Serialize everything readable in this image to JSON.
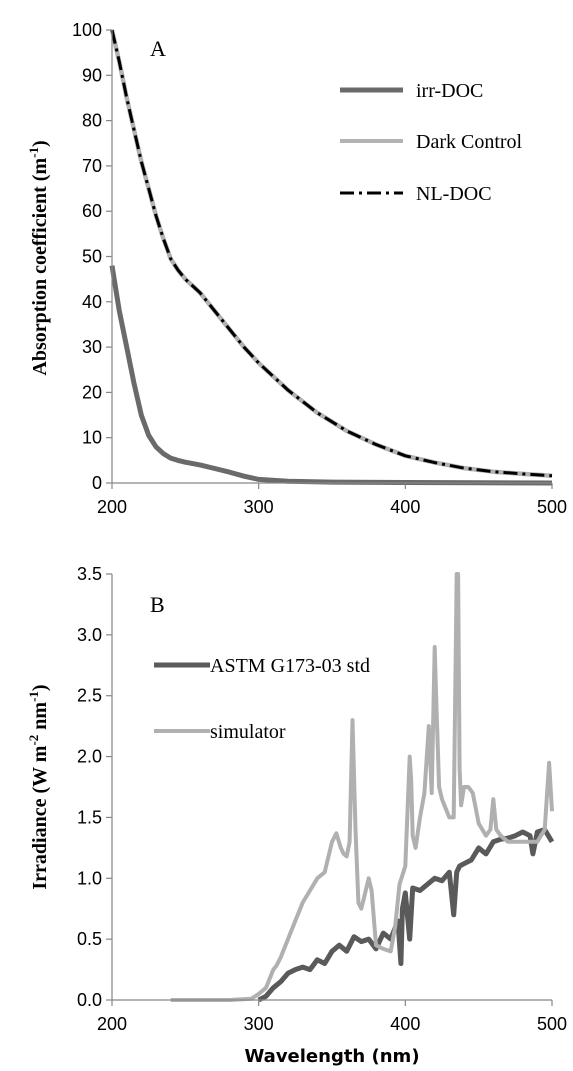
{
  "chart_data": [
    {
      "type": "line",
      "panel_label": "A",
      "ylabel": "Absorption coefficient (m",
      "ylabel_sup": "-1",
      "ylabel_end": ")",
      "xlabel": "",
      "xlim": [
        200,
        500
      ],
      "ylim": [
        0,
        100
      ],
      "x_ticks": [
        "200",
        "300",
        "400",
        "500"
      ],
      "y_ticks": [
        "0",
        "10",
        "20",
        "30",
        "40",
        "50",
        "60",
        "70",
        "80",
        "90",
        "100"
      ],
      "grid": false,
      "legend_position": "top-right",
      "series": [
        {
          "name": "irr-DOC",
          "color": "#6a6a6a",
          "style": "solid",
          "x": [
            200,
            205,
            210,
            215,
            220,
            225,
            230,
            235,
            240,
            245,
            250,
            260,
            270,
            280,
            290,
            300,
            320,
            350,
            400,
            450,
            500
          ],
          "y": [
            48,
            38,
            30,
            22,
            15,
            10.5,
            8,
            6.5,
            5.5,
            5,
            4.6,
            4,
            3.2,
            2.4,
            1.5,
            0.8,
            0.4,
            0.2,
            0.1,
            0.05,
            0
          ]
        },
        {
          "name": "Dark Control",
          "color": "#b2b2b2",
          "style": "solid",
          "x": [
            200,
            205,
            210,
            215,
            220,
            225,
            230,
            235,
            240,
            245,
            250,
            260,
            270,
            280,
            290,
            300,
            310,
            320,
            330,
            340,
            350,
            360,
            380,
            400,
            420,
            440,
            460,
            480,
            500
          ],
          "y": [
            100,
            93,
            85,
            78,
            71,
            65,
            59,
            54,
            49.5,
            47,
            45,
            42,
            38,
            34,
            30,
            26.5,
            23.5,
            20.5,
            18,
            15.5,
            13.5,
            11.5,
            8.5,
            6,
            4.5,
            3.3,
            2.5,
            2,
            1.6
          ]
        },
        {
          "name": "NL-DOC",
          "color": "#000000",
          "style": "dashdot",
          "x": [
            200,
            205,
            210,
            215,
            220,
            225,
            230,
            235,
            240,
            245,
            250,
            260,
            270,
            280,
            290,
            300,
            310,
            320,
            330,
            340,
            350,
            360,
            380,
            400,
            420,
            440,
            460,
            480,
            500
          ],
          "y": [
            100,
            93,
            85,
            78,
            71,
            65,
            59,
            54,
            49.5,
            47,
            45,
            42,
            38,
            34,
            30,
            26.5,
            23.5,
            20.5,
            18,
            15.5,
            13.5,
            11.5,
            8.5,
            6,
            4.5,
            3.3,
            2.5,
            2,
            1.6
          ]
        }
      ]
    },
    {
      "type": "line",
      "panel_label": "B",
      "ylabel": "Irradiance (W m",
      "ylabel_sup1": "-2",
      "ylabel_mid": " nm",
      "ylabel_sup2": "-1",
      "ylabel_end": ")",
      "xlabel": "Wavelength (nm)",
      "xlim": [
        200,
        500
      ],
      "ylim": [
        0,
        3.5
      ],
      "x_ticks": [
        "200",
        "300",
        "400",
        "500"
      ],
      "y_ticks": [
        "0.0",
        "0.5",
        "1.0",
        "1.5",
        "2.0",
        "2.5",
        "3.0",
        "3.5"
      ],
      "grid": false,
      "legend_position": "top-left",
      "series": [
        {
          "name": "ASTM G173-03 std",
          "color": "#5a5a5a",
          "style": "solid",
          "x": [
            300,
            305,
            310,
            315,
            320,
            325,
            330,
            335,
            340,
            345,
            350,
            355,
            360,
            365,
            370,
            375,
            380,
            385,
            390,
            395,
            397,
            398,
            400,
            403,
            405,
            410,
            415,
            420,
            425,
            430,
            433,
            435,
            437,
            440,
            445,
            450,
            455,
            460,
            465,
            470,
            475,
            480,
            485,
            487,
            490,
            495,
            500
          ],
          "y": [
            0.0,
            0.03,
            0.1,
            0.15,
            0.22,
            0.25,
            0.27,
            0.25,
            0.33,
            0.3,
            0.4,
            0.45,
            0.4,
            0.52,
            0.48,
            0.5,
            0.42,
            0.55,
            0.5,
            0.65,
            0.3,
            0.75,
            0.88,
            0.5,
            0.92,
            0.9,
            0.95,
            1.0,
            0.98,
            1.05,
            0.7,
            1.05,
            1.1,
            1.12,
            1.15,
            1.25,
            1.2,
            1.3,
            1.32,
            1.33,
            1.35,
            1.38,
            1.35,
            1.2,
            1.38,
            1.4,
            1.3
          ]
        },
        {
          "name": "simulator",
          "color": "#b0b0b0",
          "style": "solid",
          "x": [
            240,
            260,
            280,
            295,
            300,
            305,
            310,
            312,
            315,
            320,
            325,
            330,
            335,
            340,
            345,
            350,
            353,
            356,
            358,
            360,
            362,
            364,
            366,
            368,
            370,
            372,
            375,
            377,
            380,
            385,
            390,
            393,
            396,
            400,
            403,
            404,
            405,
            407,
            410,
            413,
            416,
            418,
            420,
            421,
            423,
            425,
            430,
            433,
            435,
            436,
            437,
            438,
            440,
            443,
            446,
            450,
            455,
            458,
            460,
            462,
            465,
            470,
            480,
            490,
            495,
            498,
            500
          ],
          "y": [
            0,
            0,
            0,
            0.01,
            0.05,
            0.1,
            0.25,
            0.28,
            0.35,
            0.5,
            0.65,
            0.8,
            0.9,
            1.0,
            1.05,
            1.3,
            1.37,
            1.25,
            1.2,
            1.18,
            1.3,
            2.3,
            1.4,
            0.8,
            0.75,
            0.85,
            1.0,
            0.9,
            0.45,
            0.42,
            0.4,
            0.6,
            0.95,
            1.1,
            2.0,
            1.8,
            1.35,
            1.25,
            1.5,
            1.7,
            2.25,
            1.7,
            2.9,
            2.5,
            1.75,
            1.65,
            1.5,
            1.5,
            3.5,
            3.5,
            1.9,
            1.6,
            1.75,
            1.75,
            1.7,
            1.45,
            1.35,
            1.4,
            1.65,
            1.4,
            1.35,
            1.3,
            1.3,
            1.3,
            1.4,
            1.95,
            1.55
          ]
        }
      ]
    }
  ]
}
